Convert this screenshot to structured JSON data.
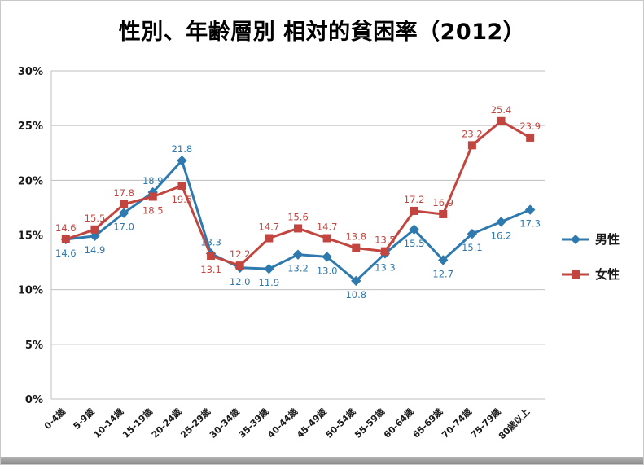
{
  "title": "性別、年齢層別 相対的貧困率（2012）",
  "chart_data": {
    "type": "line",
    "title": "性別、年齢層別 相対的貧困率（2012）",
    "categories": [
      "0-4歳",
      "5-9歳",
      "10-14歳",
      "15-19歳",
      "20-24歳",
      "25-29歳",
      "30-34歳",
      "35-39歳",
      "40-44歳",
      "45-49歳",
      "50-54歳",
      "55-59歳",
      "60-64歳",
      "65-69歳",
      "70-74歳",
      "75-79歳",
      "80歳以上"
    ],
    "series": [
      {
        "name": "男性",
        "color": "#2E79AE",
        "marker": "diamond",
        "values": [
          14.6,
          14.9,
          17.0,
          18.9,
          21.8,
          13.3,
          12.0,
          11.9,
          13.2,
          13.0,
          10.8,
          13.3,
          15.5,
          12.7,
          15.1,
          16.2,
          17.3
        ]
      },
      {
        "name": "女性",
        "color": "#C2453F",
        "marker": "square",
        "values": [
          14.6,
          15.5,
          17.8,
          18.5,
          19.5,
          13.1,
          12.2,
          14.7,
          15.6,
          14.7,
          13.8,
          13.5,
          17.2,
          16.9,
          23.2,
          25.4,
          23.9
        ]
      }
    ],
    "ylim": [
      0,
      30
    ],
    "ytick_step": 5,
    "ytick_labels": [
      "0%",
      "5%",
      "10%",
      "15%",
      "20%",
      "25%",
      "30%"
    ],
    "grid": true,
    "gridline_color": "#bfbfbf",
    "legend_position": "right",
    "data_labels": true
  },
  "legend": {
    "items": [
      {
        "label": "男性"
      },
      {
        "label": "女性"
      }
    ]
  }
}
